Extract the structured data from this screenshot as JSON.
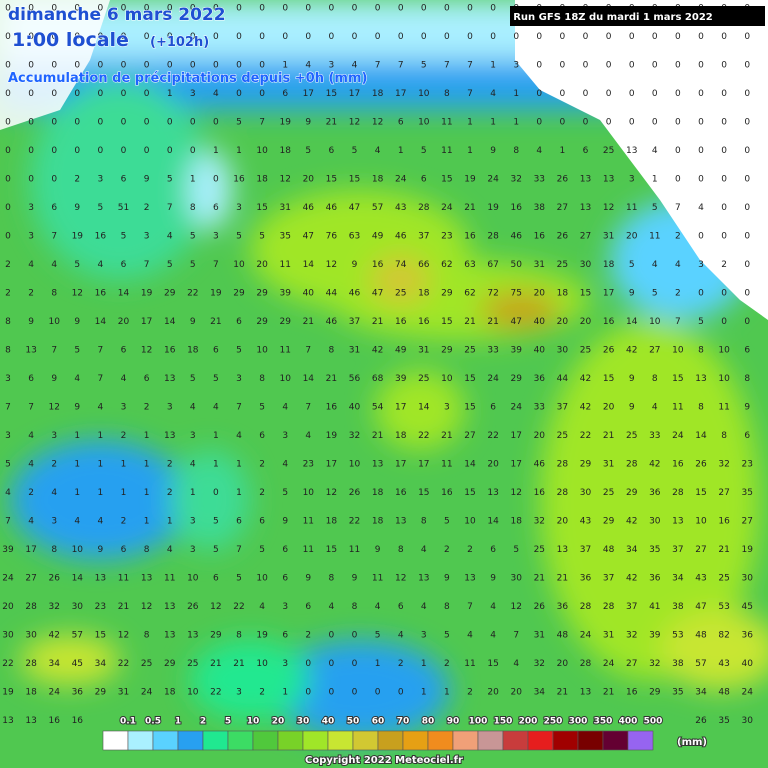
{
  "header": {
    "date": "dimanche 6 mars 2022",
    "time": "1:00 locale",
    "lead": "(+102h)",
    "subtitle": "Accumulation de précipitations depuis +0h (mm)"
  },
  "run": "Run GFS 18Z du mardi 1 mars 2022",
  "grid": {
    "rows": [
      [
        0,
        0,
        0,
        0,
        0,
        0,
        0,
        0,
        0,
        0,
        0,
        0,
        0,
        0,
        0,
        0,
        0,
        0,
        0,
        0,
        0,
        0,
        0,
        0,
        0,
        0,
        0,
        0,
        0,
        0,
        0,
        0,
        0
      ],
      [
        0,
        0,
        0,
        0,
        0,
        0,
        0,
        0,
        0,
        0,
        0,
        0,
        0,
        0,
        0,
        0,
        0,
        0,
        0,
        0,
        0,
        0,
        0,
        0,
        0,
        0,
        0,
        0,
        0,
        0,
        0,
        0,
        0
      ],
      [
        0,
        0,
        0,
        0,
        0,
        0,
        0,
        0,
        0,
        0,
        0,
        0,
        1,
        4,
        3,
        4,
        7,
        7,
        5,
        7,
        7,
        1,
        3,
        0,
        0,
        0,
        0,
        0,
        0,
        0,
        0,
        0,
        0
      ],
      [
        0,
        0,
        0,
        0,
        0,
        0,
        0,
        1,
        3,
        4,
        0,
        0,
        6,
        17,
        15,
        17,
        18,
        17,
        10,
        8,
        7,
        4,
        1,
        0,
        0,
        0,
        0,
        0,
        0,
        0,
        0,
        0,
        0
      ],
      [
        0,
        0,
        0,
        0,
        0,
        0,
        0,
        0,
        0,
        0,
        5,
        7,
        19,
        9,
        21,
        12,
        12,
        6,
        10,
        11,
        1,
        1,
        1,
        0,
        0,
        0,
        0,
        0,
        0,
        0,
        0,
        0,
        0
      ],
      [
        0,
        0,
        0,
        0,
        0,
        0,
        0,
        0,
        0,
        1,
        1,
        10,
        18,
        5,
        6,
        5,
        4,
        1,
        5,
        11,
        1,
        9,
        8,
        4,
        1,
        6,
        25,
        13,
        4,
        0,
        0,
        0,
        0
      ],
      [
        0,
        0,
        0,
        2,
        3,
        6,
        9,
        5,
        1,
        0,
        16,
        18,
        12,
        20,
        15,
        15,
        18,
        24,
        6,
        15,
        19,
        24,
        32,
        33,
        26,
        13,
        13,
        3,
        1,
        0,
        0,
        0,
        0
      ],
      [
        0,
        3,
        6,
        9,
        5,
        51,
        2,
        7,
        8,
        6,
        3,
        15,
        31,
        46,
        46,
        47,
        57,
        43,
        28,
        24,
        21,
        19,
        16,
        38,
        27,
        13,
        12,
        11,
        5,
        7,
        4,
        0,
        0
      ],
      [
        0,
        3,
        7,
        19,
        16,
        5,
        3,
        4,
        5,
        3,
        5,
        5,
        35,
        47,
        76,
        63,
        49,
        46,
        37,
        23,
        16,
        28,
        46,
        16,
        26,
        27,
        31,
        20,
        11,
        2,
        0,
        0,
        0
      ],
      [
        2,
        4,
        4,
        5,
        4,
        6,
        7,
        5,
        5,
        7,
        10,
        20,
        11,
        14,
        12,
        9,
        16,
        74,
        66,
        62,
        63,
        67,
        50,
        31,
        25,
        30,
        18,
        5,
        4,
        4,
        3,
        2,
        0
      ],
      [
        2,
        2,
        8,
        12,
        16,
        14,
        19,
        29,
        22,
        19,
        29,
        29,
        39,
        40,
        44,
        46,
        47,
        25,
        18,
        29,
        62,
        72,
        75,
        20,
        18,
        15,
        17,
        9,
        5,
        2,
        0,
        0,
        0
      ],
      [
        8,
        9,
        10,
        9,
        14,
        20,
        17,
        14,
        9,
        21,
        6,
        29,
        29,
        21,
        46,
        37,
        21,
        16,
        16,
        15,
        21,
        21,
        47,
        40,
        20,
        20,
        16,
        14,
        10,
        7,
        5,
        0,
        0
      ],
      [
        8,
        13,
        7,
        5,
        7,
        6,
        12,
        16,
        18,
        6,
        5,
        10,
        11,
        7,
        8,
        31,
        42,
        49,
        31,
        29,
        25,
        33,
        39,
        40,
        30,
        25,
        26,
        42,
        27,
        10,
        8,
        10,
        6
      ],
      [
        3,
        6,
        9,
        4,
        7,
        4,
        6,
        13,
        5,
        5,
        3,
        8,
        10,
        14,
        21,
        56,
        68,
        39,
        25,
        10,
        15,
        24,
        29,
        36,
        44,
        42,
        15,
        9,
        8,
        15,
        13,
        10,
        8
      ],
      [
        7,
        7,
        12,
        9,
        4,
        3,
        2,
        3,
        4,
        4,
        7,
        5,
        4,
        7,
        16,
        40,
        54,
        17,
        14,
        3,
        15,
        6,
        24,
        33,
        37,
        42,
        20,
        9,
        4,
        11,
        8,
        11,
        9
      ],
      [
        3,
        4,
        3,
        1,
        1,
        2,
        1,
        13,
        3,
        1,
        4,
        6,
        3,
        4,
        19,
        32,
        21,
        18,
        22,
        21,
        27,
        22,
        17,
        20,
        25,
        22,
        21,
        25,
        33,
        24,
        14,
        8,
        6
      ],
      [
        5,
        4,
        2,
        1,
        1,
        1,
        1,
        2,
        4,
        1,
        1,
        2,
        4,
        23,
        17,
        10,
        13,
        17,
        17,
        11,
        14,
        20,
        17,
        46,
        28,
        29,
        31,
        28,
        42,
        16,
        26,
        32,
        23
      ],
      [
        4,
        2,
        4,
        1,
        1,
        1,
        1,
        2,
        1,
        0,
        1,
        2,
        5,
        10,
        12,
        26,
        18,
        16,
        15,
        16,
        15,
        13,
        12,
        16,
        28,
        30,
        25,
        29,
        36,
        28,
        15,
        27,
        35
      ],
      [
        7,
        4,
        3,
        4,
        4,
        2,
        1,
        1,
        3,
        5,
        6,
        6,
        9,
        11,
        18,
        22,
        18,
        13,
        8,
        5,
        10,
        14,
        18,
        32,
        20,
        43,
        29,
        42,
        30,
        13,
        10,
        16,
        27
      ],
      [
        39,
        17,
        8,
        10,
        9,
        6,
        8,
        4,
        3,
        5,
        7,
        5,
        6,
        11,
        15,
        11,
        9,
        8,
        4,
        2,
        2,
        6,
        5,
        25,
        13,
        37,
        48,
        34,
        35,
        37,
        27,
        21,
        19
      ],
      [
        24,
        27,
        26,
        14,
        13,
        11,
        13,
        11,
        10,
        6,
        5,
        10,
        6,
        9,
        8,
        9,
        11,
        12,
        13,
        9,
        13,
        9,
        30,
        21,
        21,
        36,
        37,
        42,
        36,
        34,
        43,
        25,
        30
      ],
      [
        20,
        28,
        32,
        30,
        23,
        21,
        12,
        13,
        26,
        12,
        22,
        4,
        3,
        6,
        4,
        8,
        4,
        6,
        4,
        8,
        7,
        4,
        12,
        26,
        36,
        28,
        28,
        37,
        41,
        38,
        47,
        53,
        45
      ],
      [
        30,
        30,
        42,
        57,
        15,
        12,
        8,
        13,
        13,
        29,
        8,
        19,
        6,
        2,
        0,
        0,
        5,
        4,
        3,
        5,
        4,
        4,
        7,
        31,
        48,
        24,
        31,
        32,
        39,
        53,
        48,
        82,
        36
      ],
      [
        22,
        28,
        34,
        45,
        34,
        22,
        25,
        29,
        25,
        21,
        21,
        10,
        3,
        0,
        0,
        0,
        1,
        2,
        1,
        2,
        11,
        15,
        4,
        32,
        20,
        28,
        24,
        27,
        32,
        38,
        57,
        43,
        40
      ],
      [
        19,
        18,
        24,
        36,
        29,
        31,
        24,
        18,
        10,
        22,
        3,
        2,
        1,
        0,
        0,
        0,
        0,
        0,
        1,
        1,
        2,
        20,
        20,
        34,
        21,
        13,
        21,
        16,
        29,
        35,
        34,
        48,
        24
      ],
      [
        13,
        13,
        16,
        16,
        null,
        null,
        null,
        null,
        null,
        null,
        null,
        null,
        null,
        null,
        null,
        null,
        null,
        null,
        null,
        null,
        null,
        null,
        null,
        null,
        null,
        null,
        null,
        null,
        null,
        null,
        26,
        35,
        30
      ]
    ]
  },
  "legend": {
    "labels": [
      0.1,
      0.5,
      1,
      2,
      5,
      10,
      20,
      30,
      40,
      50,
      60,
      70,
      80,
      90,
      100,
      150,
      200,
      250,
      300,
      350,
      400,
      500
    ],
    "colors": [
      "#ffffff",
      "#aaf0ff",
      "#5ad2ff",
      "#28a0f0",
      "#20e890",
      "#3cdc64",
      "#50c83c",
      "#78d228",
      "#a0e628",
      "#c8e632",
      "#d2c832",
      "#c8a01e",
      "#e6a014",
      "#f08c1e",
      "#f0a078",
      "#c89696",
      "#c83c3c",
      "#e61e1e",
      "#a00000",
      "#780000",
      "#640032",
      "#9664f0"
    ],
    "unit": "(mm)"
  },
  "copyright": "Copyright 2022 Meteociel.fr"
}
